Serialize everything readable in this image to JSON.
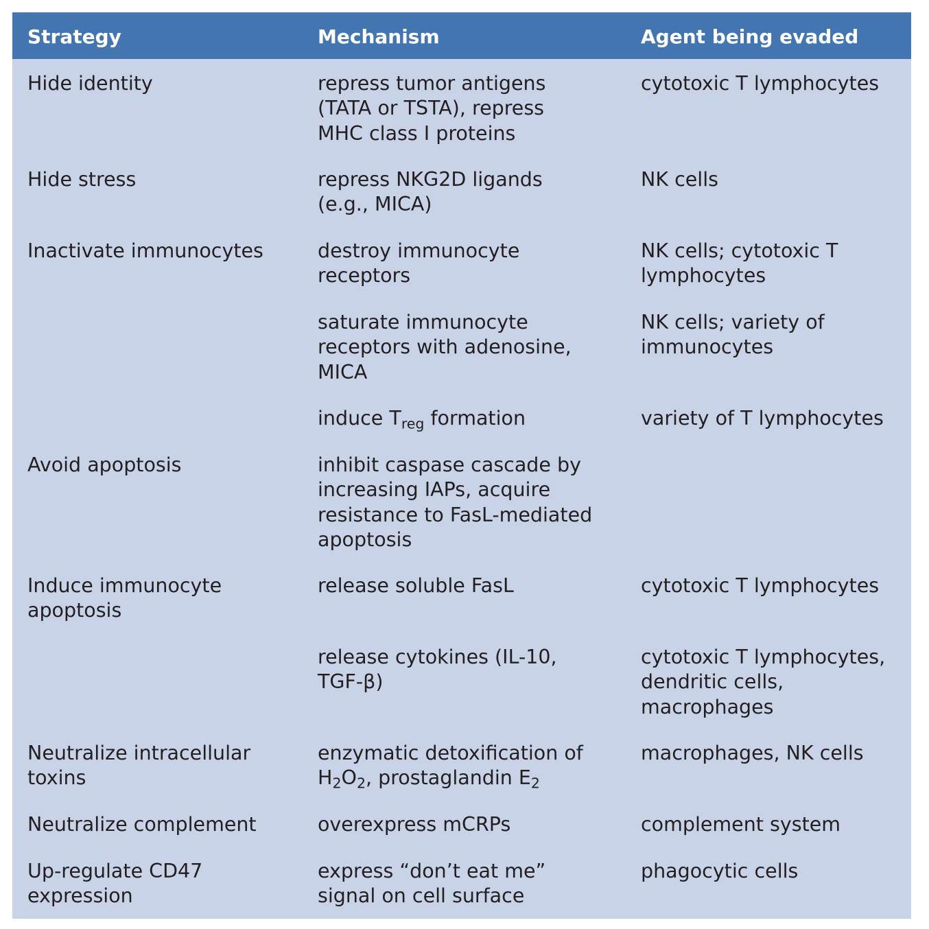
{
  "headers": {
    "strategy": "Strategy",
    "mechanism": "Mechanism",
    "agent": "Agent being evaded"
  },
  "rows": [
    {
      "strategy": "Hide identity",
      "mechanism": "repress tumor antigens (TATA or TSTA), repress MHC class I proteins",
      "agent": "cytotoxic T lymphocytes"
    },
    {
      "strategy": "Hide stress",
      "mechanism": "repress NKG2D ligands (e.g., MICA)",
      "agent": "NK cells"
    },
    {
      "strategy": "Inactivate immunocytes",
      "mechanism": "destroy immunocyte receptors",
      "agent": "NK cells; cytotoxic T lymphocytes"
    },
    {
      "strategy": "",
      "mechanism": "saturate immunocyte receptors with adenosine, MICA",
      "agent": "NK cells; variety of immunocytes"
    },
    {
      "strategy": "",
      "mechanism_parts": [
        "induce T",
        "reg",
        " formation"
      ],
      "agent": "variety of T lymphocytes"
    },
    {
      "strategy": "Avoid apoptosis",
      "mechanism": "inhibit caspase cascade by increasing IAPs, acquire resistance to FasL-mediated apoptosis",
      "agent": ""
    },
    {
      "strategy": "Induce immunocyte apoptosis",
      "mechanism": "release soluble FasL",
      "agent": "cytotoxic T lymphocytes"
    },
    {
      "strategy": "",
      "mechanism": "release cytokines (IL-10, TGF-β)",
      "agent": "cytotoxic T lymphocytes, dendritic cells, macrophages"
    },
    {
      "strategy": "Neutralize intracellular toxins",
      "mechanism_parts": [
        "enzymatic detoxification of H",
        "2",
        "O",
        "2",
        ", prostaglandin E",
        "2"
      ],
      "agent": "macrophages, NK cells"
    },
    {
      "strategy": "Neutralize complement",
      "mechanism": "overexpress mCRPs",
      "agent": "complement system"
    },
    {
      "strategy": "Up-regulate CD47 expression",
      "mechanism": "express “don’t eat me” signal on cell surface",
      "agent": "phagocytic cells"
    }
  ],
  "colors": {
    "header_bg": "#4376b1",
    "body_bg": "#c9d3e8",
    "header_text": "#ffffff",
    "body_text": "#231f20"
  }
}
